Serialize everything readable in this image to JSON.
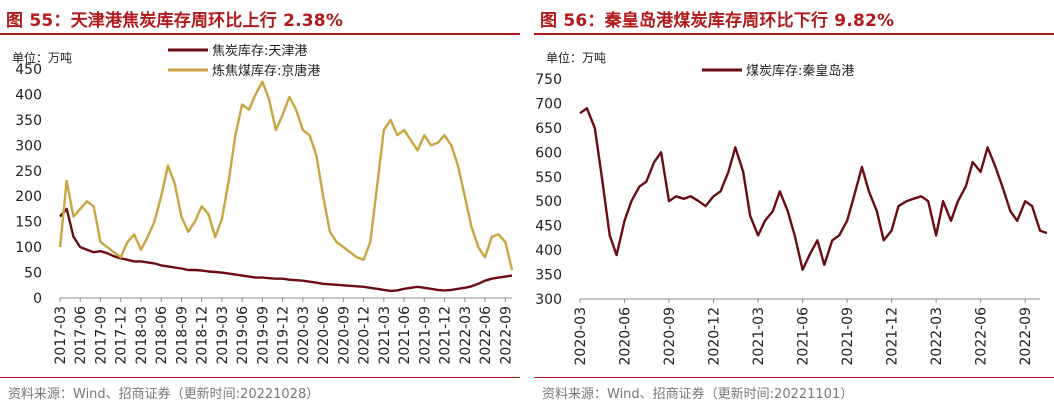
{
  "charts": [
    {
      "figure_title": "图 55：天津港焦炭库存周环比上行 2.38%",
      "unit": "单位：万吨",
      "source": "资料来源：Wind、招商证券（更新时间:20221028）",
      "chart_data": {
        "type": "line",
        "ylim": [
          0,
          450
        ],
        "yticks": [
          0,
          50,
          100,
          150,
          200,
          250,
          300,
          350,
          400,
          450
        ],
        "xlim": [
          "2017-03",
          "2022-10"
        ],
        "xticks": [
          "2017-03",
          "2017-06",
          "2017-09",
          "2017-12",
          "2018-03",
          "2018-06",
          "2018-09",
          "2018-12",
          "2019-03",
          "2019-06",
          "2019-09",
          "2019-12",
          "2020-03",
          "2020-06",
          "2020-09",
          "2020-12",
          "2021-03",
          "2021-06",
          "2021-09",
          "2021-12",
          "2022-03",
          "2022-06",
          "2022-09"
        ],
        "legend_position": "top-center",
        "grid": false,
        "series": [
          {
            "name": "焦炭库存:天津港",
            "color": "#6b0b12",
            "points": [
              [
                "2017-03",
                160
              ],
              [
                "2017-04",
                175
              ],
              [
                "2017-05",
                120
              ],
              [
                "2017-06",
                100
              ],
              [
                "2017-07",
                95
              ],
              [
                "2017-08",
                90
              ],
              [
                "2017-09",
                92
              ],
              [
                "2017-10",
                88
              ],
              [
                "2017-11",
                82
              ],
              [
                "2017-12",
                78
              ],
              [
                "2018-01",
                75
              ],
              [
                "2018-02",
                72
              ],
              [
                "2018-03",
                72
              ],
              [
                "2018-04",
                70
              ],
              [
                "2018-05",
                68
              ],
              [
                "2018-06",
                64
              ],
              [
                "2018-07",
                62
              ],
              [
                "2018-08",
                60
              ],
              [
                "2018-09",
                58
              ],
              [
                "2018-10",
                55
              ],
              [
                "2018-11",
                55
              ],
              [
                "2018-12",
                54
              ],
              [
                "2019-01",
                52
              ],
              [
                "2019-02",
                51
              ],
              [
                "2019-03",
                50
              ],
              [
                "2019-04",
                48
              ],
              [
                "2019-05",
                46
              ],
              [
                "2019-06",
                44
              ],
              [
                "2019-07",
                42
              ],
              [
                "2019-08",
                40
              ],
              [
                "2019-09",
                40
              ],
              [
                "2019-10",
                39
              ],
              [
                "2019-11",
                38
              ],
              [
                "2019-12",
                38
              ],
              [
                "2020-01",
                36
              ],
              [
                "2020-02",
                35
              ],
              [
                "2020-03",
                34
              ],
              [
                "2020-04",
                32
              ],
              [
                "2020-05",
                30
              ],
              [
                "2020-06",
                28
              ],
              [
                "2020-07",
                27
              ],
              [
                "2020-08",
                26
              ],
              [
                "2020-09",
                25
              ],
              [
                "2020-10",
                24
              ],
              [
                "2020-11",
                23
              ],
              [
                "2020-12",
                22
              ],
              [
                "2021-01",
                20
              ],
              [
                "2021-02",
                18
              ],
              [
                "2021-03",
                16
              ],
              [
                "2021-04",
                14
              ],
              [
                "2021-05",
                15
              ],
              [
                "2021-06",
                18
              ],
              [
                "2021-07",
                20
              ],
              [
                "2021-08",
                22
              ],
              [
                "2021-09",
                20
              ],
              [
                "2021-10",
                18
              ],
              [
                "2021-11",
                16
              ],
              [
                "2021-12",
                15
              ],
              [
                "2022-01",
                16
              ],
              [
                "2022-02",
                18
              ],
              [
                "2022-03",
                20
              ],
              [
                "2022-04",
                23
              ],
              [
                "2022-05",
                28
              ],
              [
                "2022-06",
                34
              ],
              [
                "2022-07",
                38
              ],
              [
                "2022-08",
                40
              ],
              [
                "2022-09",
                42
              ],
              [
                "2022-10",
                44
              ]
            ]
          },
          {
            "name": "炼焦煤库存:京唐港",
            "color": "#c9a441",
            "points": [
              [
                "2017-03",
                100
              ],
              [
                "2017-04",
                230
              ],
              [
                "2017-05",
                160
              ],
              [
                "2017-06",
                175
              ],
              [
                "2017-07",
                190
              ],
              [
                "2017-08",
                180
              ],
              [
                "2017-09",
                110
              ],
              [
                "2017-10",
                100
              ],
              [
                "2017-11",
                90
              ],
              [
                "2017-12",
                80
              ],
              [
                "2018-01",
                110
              ],
              [
                "2018-02",
                125
              ],
              [
                "2018-03",
                95
              ],
              [
                "2018-04",
                120
              ],
              [
                "2018-05",
                150
              ],
              [
                "2018-06",
                200
              ],
              [
                "2018-07",
                260
              ],
              [
                "2018-08",
                225
              ],
              [
                "2018-09",
                160
              ],
              [
                "2018-10",
                130
              ],
              [
                "2018-11",
                150
              ],
              [
                "2018-12",
                180
              ],
              [
                "2019-01",
                165
              ],
              [
                "2019-02",
                120
              ],
              [
                "2019-03",
                155
              ],
              [
                "2019-04",
                230
              ],
              [
                "2019-05",
                320
              ],
              [
                "2019-06",
                380
              ],
              [
                "2019-07",
                370
              ],
              [
                "2019-08",
                400
              ],
              [
                "2019-09",
                425
              ],
              [
                "2019-10",
                390
              ],
              [
                "2019-11",
                330
              ],
              [
                "2019-12",
                360
              ],
              [
                "2020-01",
                395
              ],
              [
                "2020-02",
                370
              ],
              [
                "2020-03",
                330
              ],
              [
                "2020-04",
                320
              ],
              [
                "2020-05",
                280
              ],
              [
                "2020-06",
                200
              ],
              [
                "2020-07",
                130
              ],
              [
                "2020-08",
                110
              ],
              [
                "2020-09",
                100
              ],
              [
                "2020-10",
                90
              ],
              [
                "2020-11",
                80
              ],
              [
                "2020-12",
                75
              ],
              [
                "2021-01",
                110
              ],
              [
                "2021-02",
                220
              ],
              [
                "2021-03",
                330
              ],
              [
                "2021-04",
                350
              ],
              [
                "2021-05",
                320
              ],
              [
                "2021-06",
                330
              ],
              [
                "2021-07",
                310
              ],
              [
                "2021-08",
                290
              ],
              [
                "2021-09",
                320
              ],
              [
                "2021-10",
                300
              ],
              [
                "2021-11",
                305
              ],
              [
                "2021-12",
                320
              ],
              [
                "2022-01",
                300
              ],
              [
                "2022-02",
                260
              ],
              [
                "2022-03",
                200
              ],
              [
                "2022-04",
                140
              ],
              [
                "2022-05",
                100
              ],
              [
                "2022-06",
                80
              ],
              [
                "2022-07",
                120
              ],
              [
                "2022-08",
                125
              ],
              [
                "2022-09",
                110
              ],
              [
                "2022-10",
                55
              ]
            ]
          }
        ]
      }
    },
    {
      "figure_title": "图 56：秦皇岛港煤炭库存周环比下行 9.82%",
      "unit": "单位：万吨",
      "source": "资料来源：Wind、招商证券（更新时间:20221101）",
      "chart_data": {
        "type": "line",
        "ylim": [
          300,
          750
        ],
        "yticks": [
          300,
          350,
          400,
          450,
          500,
          550,
          600,
          650,
          700,
          750
        ],
        "xlim": [
          "2020-03",
          "2022-10"
        ],
        "xticks": [
          "2020-03",
          "2020-06",
          "2020-09",
          "2020-12",
          "2021-03",
          "2021-06",
          "2021-09",
          "2021-12",
          "2022-03",
          "2022-06",
          "2022-09"
        ],
        "legend_position": "top-center",
        "grid": false,
        "series": [
          {
            "name": "煤炭库存:秦皇岛港",
            "color": "#6b0b12",
            "points": [
              [
                "2020-03",
                680
              ],
              [
                "2020-03-15",
                690
              ],
              [
                "2020-04",
                650
              ],
              [
                "2020-04-15",
                550
              ],
              [
                "2020-05",
                430
              ],
              [
                "2020-05-15",
                390
              ],
              [
                "2020-06",
                460
              ],
              [
                "2020-06-15",
                500
              ],
              [
                "2020-07",
                530
              ],
              [
                "2020-07-15",
                540
              ],
              [
                "2020-08",
                580
              ],
              [
                "2020-08-15",
                600
              ],
              [
                "2020-09",
                500
              ],
              [
                "2020-09-15",
                510
              ],
              [
                "2020-10",
                505
              ],
              [
                "2020-10-15",
                510
              ],
              [
                "2020-11",
                500
              ],
              [
                "2020-11-15",
                490
              ],
              [
                "2020-12",
                510
              ],
              [
                "2020-12-15",
                520
              ],
              [
                "2021-01",
                560
              ],
              [
                "2021-01-15",
                610
              ],
              [
                "2021-02",
                560
              ],
              [
                "2021-02-15",
                470
              ],
              [
                "2021-03",
                430
              ],
              [
                "2021-03-15",
                460
              ],
              [
                "2021-04",
                480
              ],
              [
                "2021-04-15",
                520
              ],
              [
                "2021-05",
                480
              ],
              [
                "2021-05-15",
                430
              ],
              [
                "2021-06",
                360
              ],
              [
                "2021-06-15",
                390
              ],
              [
                "2021-07",
                420
              ],
              [
                "2021-07-15",
                370
              ],
              [
                "2021-08",
                420
              ],
              [
                "2021-08-15",
                430
              ],
              [
                "2021-09",
                460
              ],
              [
                "2021-09-15",
                510
              ],
              [
                "2021-10",
                570
              ],
              [
                "2021-10-15",
                520
              ],
              [
                "2021-11",
                480
              ],
              [
                "2021-11-15",
                420
              ],
              [
                "2021-12",
                440
              ],
              [
                "2021-12-15",
                490
              ],
              [
                "2022-01",
                500
              ],
              [
                "2022-01-15",
                505
              ],
              [
                "2022-02",
                510
              ],
              [
                "2022-02-15",
                500
              ],
              [
                "2022-03",
                430
              ],
              [
                "2022-03-15",
                500
              ],
              [
                "2022-04",
                460
              ],
              [
                "2022-04-15",
                500
              ],
              [
                "2022-05",
                530
              ],
              [
                "2022-05-15",
                580
              ],
              [
                "2022-06",
                560
              ],
              [
                "2022-06-15",
                610
              ],
              [
                "2022-07",
                570
              ],
              [
                "2022-07-15",
                530
              ],
              [
                "2022-08",
                480
              ],
              [
                "2022-08-15",
                460
              ],
              [
                "2022-09",
                500
              ],
              [
                "2022-09-15",
                490
              ],
              [
                "2022-10",
                440
              ],
              [
                "2022-10-15",
                435
              ]
            ]
          }
        ]
      }
    }
  ]
}
